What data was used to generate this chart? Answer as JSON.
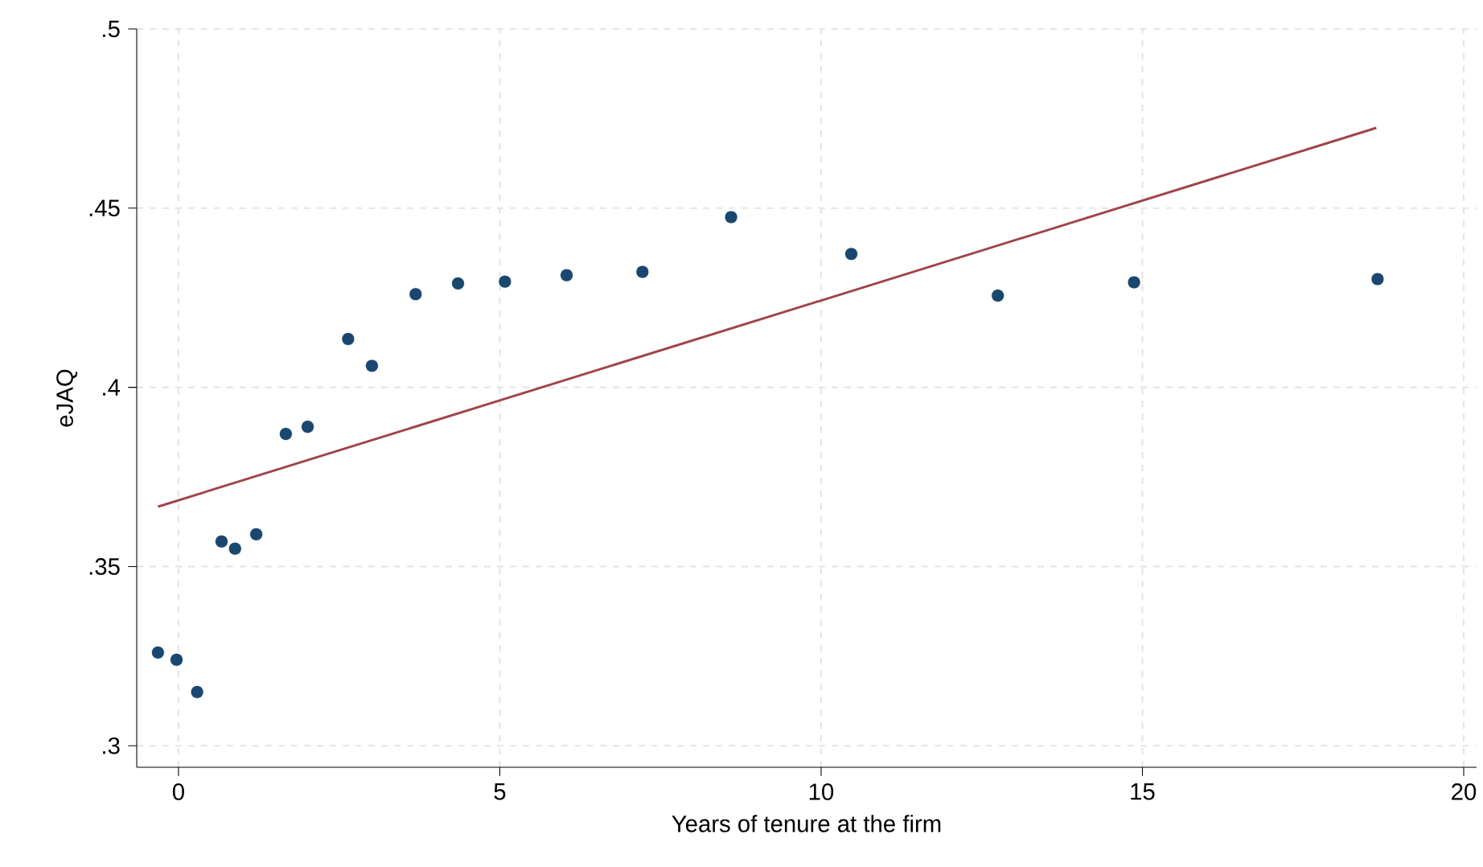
{
  "chart_data": {
    "type": "scatter",
    "xlabel": "Years of tenure at the firm",
    "ylabel": "eJAQ",
    "xlim": [
      -0.65,
      20.2
    ],
    "ylim": [
      0.294,
      0.5
    ],
    "xticks": [
      0,
      5,
      10,
      15,
      20
    ],
    "yticks": [
      {
        "value": 0.3,
        "label": ".3"
      },
      {
        "value": 0.35,
        "label": ".35"
      },
      {
        "value": 0.4,
        "label": ".4"
      },
      {
        "value": 0.45,
        "label": ".45"
      },
      {
        "value": 0.5,
        "label": ".5"
      }
    ],
    "grid": true,
    "marker": "circle",
    "series": [
      {
        "color": "#1a476f",
        "x": [
          -0.32,
          -0.03,
          0.29,
          0.67,
          0.88,
          1.21,
          1.67,
          2.01,
          2.64,
          3.01,
          3.69,
          4.35,
          5.08,
          6.04,
          7.22,
          8.6,
          10.47,
          12.75,
          14.87,
          18.66
        ],
        "values": [
          0.326,
          0.324,
          0.315,
          0.357,
          0.355,
          0.359,
          0.387,
          0.389,
          0.4135,
          0.406,
          0.426,
          0.429,
          0.4295,
          0.4313,
          0.4322,
          0.4475,
          0.4372,
          0.4256,
          0.4293,
          0.4302
        ]
      },
      {
        "type": "line",
        "color": "#a0444a",
        "line_style": "solid",
        "marker": "none",
        "x": [
          -0.32,
          18.64
        ],
        "values": [
          0.3667,
          0.4724
        ]
      }
    ]
  }
}
